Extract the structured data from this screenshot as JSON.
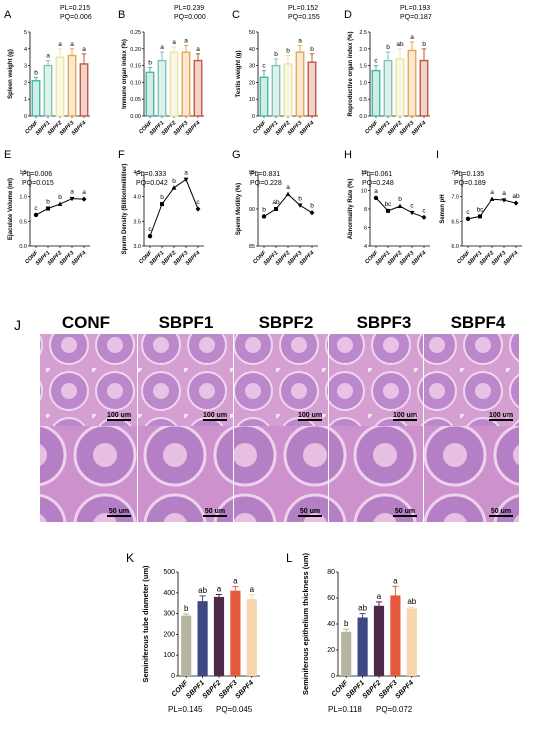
{
  "groups": [
    "CONF",
    "SBPF1",
    "SBPF2",
    "SBPF3",
    "SBPF4"
  ],
  "colors": {
    "top": [
      "#48b8a6",
      "#7ec6b3",
      "#e9e5a1",
      "#e6a64d",
      "#c0583c"
    ],
    "bottom": [
      "#b5b49f",
      "#404a82",
      "#4d2a48",
      "#e65a3c",
      "#f5d6af"
    ],
    "histo": [
      "#d59ed1",
      "#b986cc",
      "#e6b8de"
    ]
  },
  "panel_J": {
    "letter": "J",
    "scale_top": "100 um",
    "scale_bottom": "50 um"
  },
  "chart_data": [
    {
      "panel": "A",
      "type": "bar",
      "ylabel": "Spleen weight (g)",
      "ylim": [
        0,
        5
      ],
      "yticks": [
        "0",
        "1",
        "2",
        "3",
        "4",
        "5"
      ],
      "values": [
        2.1,
        3.0,
        3.5,
        3.6,
        3.1
      ],
      "errors": [
        0.2,
        0.3,
        0.5,
        0.4,
        0.6
      ],
      "letters": [
        "b",
        "a",
        "a",
        "a",
        "a"
      ],
      "stat_l": "PL=0.215",
      "stat_q": "PQ=0.006"
    },
    {
      "panel": "B",
      "type": "bar",
      "ylabel": "Immune organ index (%)",
      "ylim": [
        0,
        0.25
      ],
      "yticks": [
        "0.00",
        "0.05",
        "0.10",
        "0.15",
        "0.20",
        "0.25"
      ],
      "values": [
        0.13,
        0.165,
        0.19,
        0.19,
        0.165
      ],
      "errors": [
        0.015,
        0.025,
        0.015,
        0.02,
        0.02
      ],
      "letters": [
        "b",
        "a",
        "a",
        "a",
        "a"
      ],
      "stat_l": "PL=0.239",
      "stat_q": "PQ=0.000"
    },
    {
      "panel": "C",
      "type": "bar",
      "ylabel": "Testis weight (g)",
      "ylim": [
        0,
        50
      ],
      "yticks": [
        "0",
        "10",
        "20",
        "30",
        "40",
        "50"
      ],
      "values": [
        23,
        30,
        31,
        38,
        32
      ],
      "errors": [
        4,
        4,
        5,
        4,
        5
      ],
      "letters": [
        "c",
        "b",
        "b",
        "a",
        "b"
      ],
      "stat_l": "PL=0.152",
      "stat_q": "PQ=0.155"
    },
    {
      "panel": "D",
      "type": "bar",
      "ylabel": "Reproductive organ index (%)",
      "ylim": [
        0,
        2.5
      ],
      "yticks": [
        "0.0",
        "0.5",
        "1.0",
        "1.5",
        "2.0",
        "2.5"
      ],
      "values": [
        1.35,
        1.65,
        1.7,
        1.95,
        1.65
      ],
      "errors": [
        0.15,
        0.25,
        0.3,
        0.25,
        0.35
      ],
      "letters": [
        "c",
        "b",
        "ab",
        "a",
        "b"
      ],
      "stat_l": "PL=0.193",
      "stat_q": "PQ=0.187"
    },
    {
      "panel": "E",
      "type": "line",
      "ylabel": "Ejaculate Volume (ml)",
      "ylim": [
        0,
        1.5
      ],
      "yticks": [
        "0.0",
        "0.5",
        "1.0",
        "1.5"
      ],
      "values": [
        0.63,
        0.76,
        0.85,
        0.96,
        0.95
      ],
      "letters": [
        "c",
        "b",
        "b",
        "a",
        "a"
      ],
      "stat_l": "PL=0.006",
      "stat_q": "PQ=0.015"
    },
    {
      "panel": "F",
      "type": "line",
      "ylabel": "Sperm Density (Billion/milliliter)",
      "ylim": [
        3.0,
        4.5
      ],
      "yticks": [
        "3.0",
        "3.5",
        "4.0",
        "4.5"
      ],
      "values": [
        3.2,
        3.85,
        4.18,
        4.35,
        3.75
      ],
      "letters": [
        "c",
        "b",
        "b",
        "a",
        "c"
      ],
      "stat_l": "PL=0.333",
      "stat_q": "PQ=0.042"
    },
    {
      "panel": "G",
      "type": "line",
      "ylabel": "Sperm Motility (%)",
      "ylim": [
        85,
        95
      ],
      "yticks": [
        "85",
        "90",
        "95"
      ],
      "values": [
        89.0,
        90.0,
        92.0,
        90.5,
        89.5
      ],
      "letters": [
        "b",
        "ab",
        "a",
        "b",
        "b"
      ],
      "stat_l": "PL=0.831",
      "stat_q": "PQ=0.228"
    },
    {
      "panel": "H",
      "type": "line",
      "ylabel": "Abnormality Rate (%)",
      "ylim": [
        4,
        12
      ],
      "yticks": [
        "4",
        "6",
        "8",
        "10",
        "12"
      ],
      "values": [
        9.2,
        7.8,
        8.3,
        7.6,
        7.1
      ],
      "letters": [
        "a",
        "bc",
        "b",
        "c",
        "c"
      ],
      "stat_l": "PL=0.061",
      "stat_q": "PQ=0.248"
    },
    {
      "panel": "I",
      "type": "line",
      "ylabel": "Semen pH",
      "ylim": [
        6.0,
        7.5
      ],
      "yticks": [
        "6.0",
        "6.5",
        "7.0",
        "7.5"
      ],
      "values": [
        6.55,
        6.6,
        6.95,
        6.93,
        6.87
      ],
      "letters": [
        "c",
        "bc",
        "a",
        "a",
        "ab"
      ],
      "stat_l": "PL=0.135",
      "stat_q": "PQ=0.189"
    },
    {
      "panel": "K",
      "type": "bar",
      "ylabel": "Seminiferous tube diameter (um)",
      "ylim": [
        0,
        500
      ],
      "yticks": [
        "0",
        "100",
        "200",
        "300",
        "400",
        "500"
      ],
      "values": [
        290,
        360,
        380,
        410,
        370
      ],
      "errors": [
        8,
        25,
        12,
        20,
        20
      ],
      "letters": [
        "b",
        "ab",
        "a",
        "a",
        "a"
      ],
      "stat_l": "PL=0.145",
      "stat_q": "PQ=0.045"
    },
    {
      "panel": "L",
      "type": "bar",
      "ylabel": "Seminiferous epithelium thickness (um)",
      "ylim": [
        0,
        80
      ],
      "yticks": [
        "0",
        "20",
        "40",
        "60",
        "80"
      ],
      "values": [
        34,
        45,
        54,
        62,
        52
      ],
      "errors": [
        2,
        3,
        3,
        7,
        1
      ],
      "letters": [
        "b",
        "ab",
        "a",
        "a",
        "ab"
      ],
      "stat_l": "PL=0.118",
      "stat_q": "PQ=0.072"
    }
  ]
}
